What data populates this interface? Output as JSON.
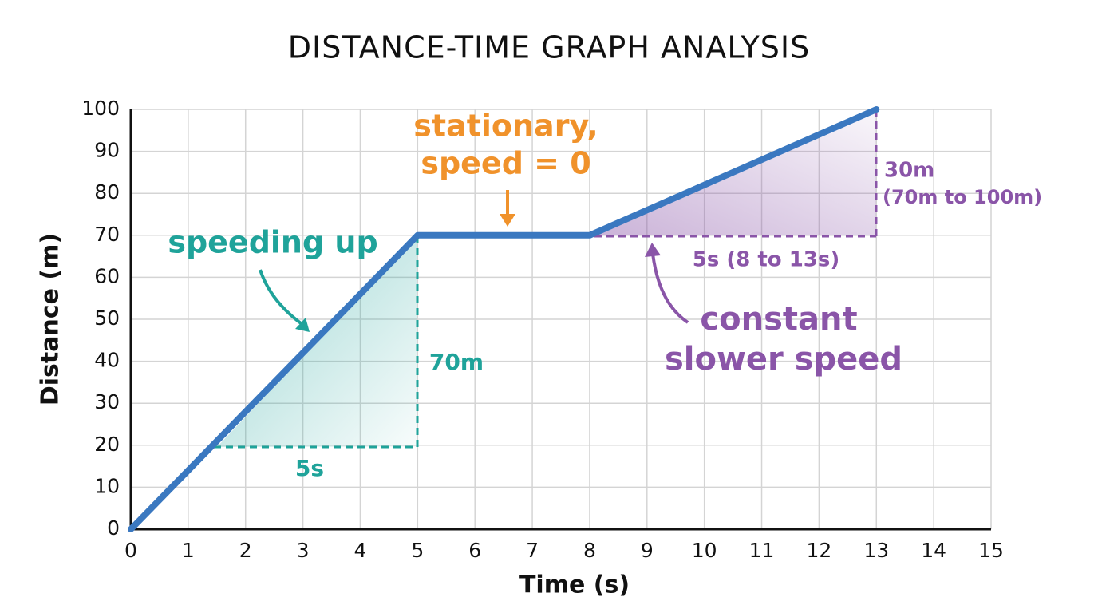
{
  "chart_data": {
    "type": "line",
    "title": "DISTANCE-TIME GRAPH ANALYSIS",
    "x_label": "Time (s)",
    "y_label": "Distance (m)",
    "x": [
      0,
      5,
      8,
      13
    ],
    "series": [
      {
        "name": "distance",
        "color": "#3a78c0",
        "values": [
          0,
          70,
          70,
          100
        ]
      }
    ],
    "xlim": [
      0,
      15
    ],
    "ylim": [
      0,
      100
    ],
    "xticks": [
      0,
      1,
      2,
      3,
      4,
      5,
      6,
      7,
      8,
      9,
      10,
      11,
      12,
      13,
      14,
      15
    ],
    "yticks": [
      0,
      10,
      20,
      30,
      40,
      50,
      60,
      70,
      80,
      90,
      100
    ],
    "grid": true,
    "annotations": {
      "speeding_up": "speeding up",
      "stationary_1": "stationary,",
      "stationary_2": "speed = 0",
      "rise_1": "70m",
      "run_1": "5s",
      "rise_2": "30m",
      "rise_2_detail": "(70m to 100m)",
      "run_2": "5s (8 to 13s)",
      "slower_1": "constant",
      "slower_2": "slower speed"
    }
  }
}
